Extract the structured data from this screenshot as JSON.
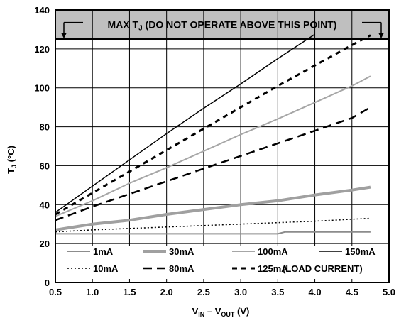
{
  "chart_data": {
    "type": "line",
    "xlabel": {
      "main": "V",
      "sub1": "IN",
      "mid": " – V",
      "sub2": "OUT",
      "unit": " (V)"
    },
    "ylabel": {
      "main": "T",
      "sub": "J",
      "unit": " (°C)"
    },
    "xlim": [
      0.5,
      5.0
    ],
    "ylim": [
      0,
      140
    ],
    "x_ticks": [
      0.5,
      1.0,
      1.5,
      2.0,
      2.5,
      3.0,
      3.5,
      4.0,
      4.5,
      5.0
    ],
    "x_tick_labels": [
      "0.5",
      "1.0",
      "1.5",
      "2.0",
      "2.5",
      "3.0",
      "3.5",
      "4.0",
      "4.5",
      "5.0"
    ],
    "y_ticks": [
      0,
      20,
      40,
      60,
      80,
      100,
      120,
      140
    ],
    "y_tick_labels": [
      "0",
      "20",
      "40",
      "60",
      "80",
      "100",
      "120",
      "140"
    ],
    "grid": true,
    "max_band": {
      "y_from": 125,
      "y_to": 140,
      "fill": "#bfbfbf",
      "label_parts": {
        "pre": "MAX T",
        "sub": "J",
        "post": " (DO NOT OPERATE ABOVE THIS POINT)"
      }
    },
    "legend_note": "(LOAD CURRENT)",
    "series": [
      {
        "name": "1mA",
        "color": "#8c8c8c",
        "width": 2,
        "dash": "",
        "x": [
          0.5,
          1.0,
          2.0,
          3.0,
          3.5,
          3.6,
          4.0,
          4.75
        ],
        "y": [
          25,
          25,
          25,
          25,
          25,
          26,
          26,
          26
        ]
      },
      {
        "name": "10mA",
        "color": "#000000",
        "width": 1.5,
        "dash": "2,3",
        "x": [
          0.5,
          1.0,
          2.0,
          3.0,
          4.0,
          4.75
        ],
        "y": [
          26,
          27,
          28.5,
          30,
          31.5,
          33
        ]
      },
      {
        "name": "30mA",
        "color": "#a0a0a0",
        "width": 4,
        "dash": "",
        "x": [
          0.5,
          1.0,
          1.5,
          2.0,
          2.5,
          3.0,
          3.5,
          4.0,
          4.5,
          4.75
        ],
        "y": [
          27,
          30,
          32,
          35,
          37.5,
          40,
          42,
          45,
          47.5,
          49
        ]
      },
      {
        "name": "80mA",
        "color": "#000000",
        "width": 2.5,
        "dash": "12,7",
        "x": [
          0.5,
          1.0,
          1.5,
          2.0,
          2.5,
          3.0,
          3.5,
          4.0,
          4.5,
          4.75
        ],
        "y": [
          32,
          39,
          45.5,
          52,
          58.5,
          65,
          71.5,
          78,
          84.5,
          90
        ]
      },
      {
        "name": "100mA",
        "color": "#a6a6a6",
        "width": 2,
        "dash": "",
        "x": [
          0.5,
          1.0,
          1.5,
          2.0,
          2.5,
          3.0,
          3.5,
          4.0,
          4.5,
          4.75
        ],
        "y": [
          34,
          42,
          51,
          59,
          67.5,
          76,
          84,
          92.5,
          101,
          106
        ]
      },
      {
        "name": "125mA",
        "color": "#000000",
        "width": 3,
        "dash": "7,6",
        "x": [
          0.5,
          1.0,
          1.5,
          2.0,
          2.5,
          3.0,
          3.5,
          4.0,
          4.5,
          4.75
        ],
        "y": [
          35,
          46,
          57,
          68,
          79,
          90,
          101,
          111.5,
          122,
          127
        ]
      },
      {
        "name": "150mA",
        "color": "#000000",
        "width": 1.5,
        "dash": "",
        "x": [
          0.5,
          1.0,
          1.5,
          2.0,
          2.5,
          3.0,
          3.5,
          4.0
        ],
        "y": [
          36,
          49.5,
          63,
          76.5,
          89.5,
          102,
          115,
          127.5
        ]
      }
    ]
  }
}
